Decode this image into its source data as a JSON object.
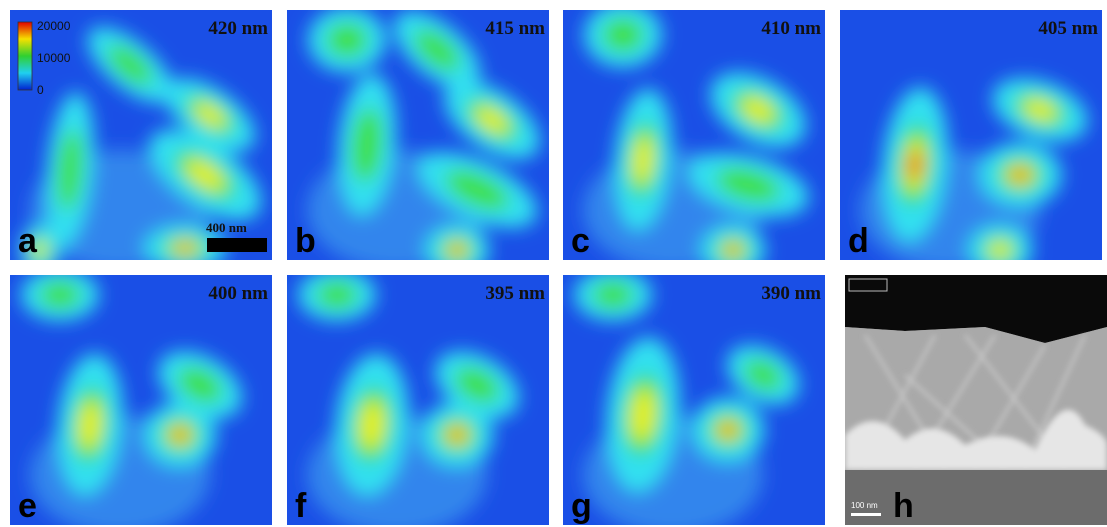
{
  "panels": [
    {
      "letter": "a",
      "label": "420 nm"
    },
    {
      "letter": "b",
      "label": "415 nm"
    },
    {
      "letter": "c",
      "label": "410 nm"
    },
    {
      "letter": "d",
      "label": "405 nm"
    },
    {
      "letter": "e",
      "label": "400 nm"
    },
    {
      "letter": "f",
      "label": "395 nm"
    },
    {
      "letter": "g",
      "label": "390 nm"
    },
    {
      "letter": "h"
    }
  ],
  "colorbar": {
    "ticks": [
      "20000",
      "10000",
      "0"
    ]
  },
  "scale_bars": {
    "a": "400 nm",
    "h": "100 nm"
  }
}
